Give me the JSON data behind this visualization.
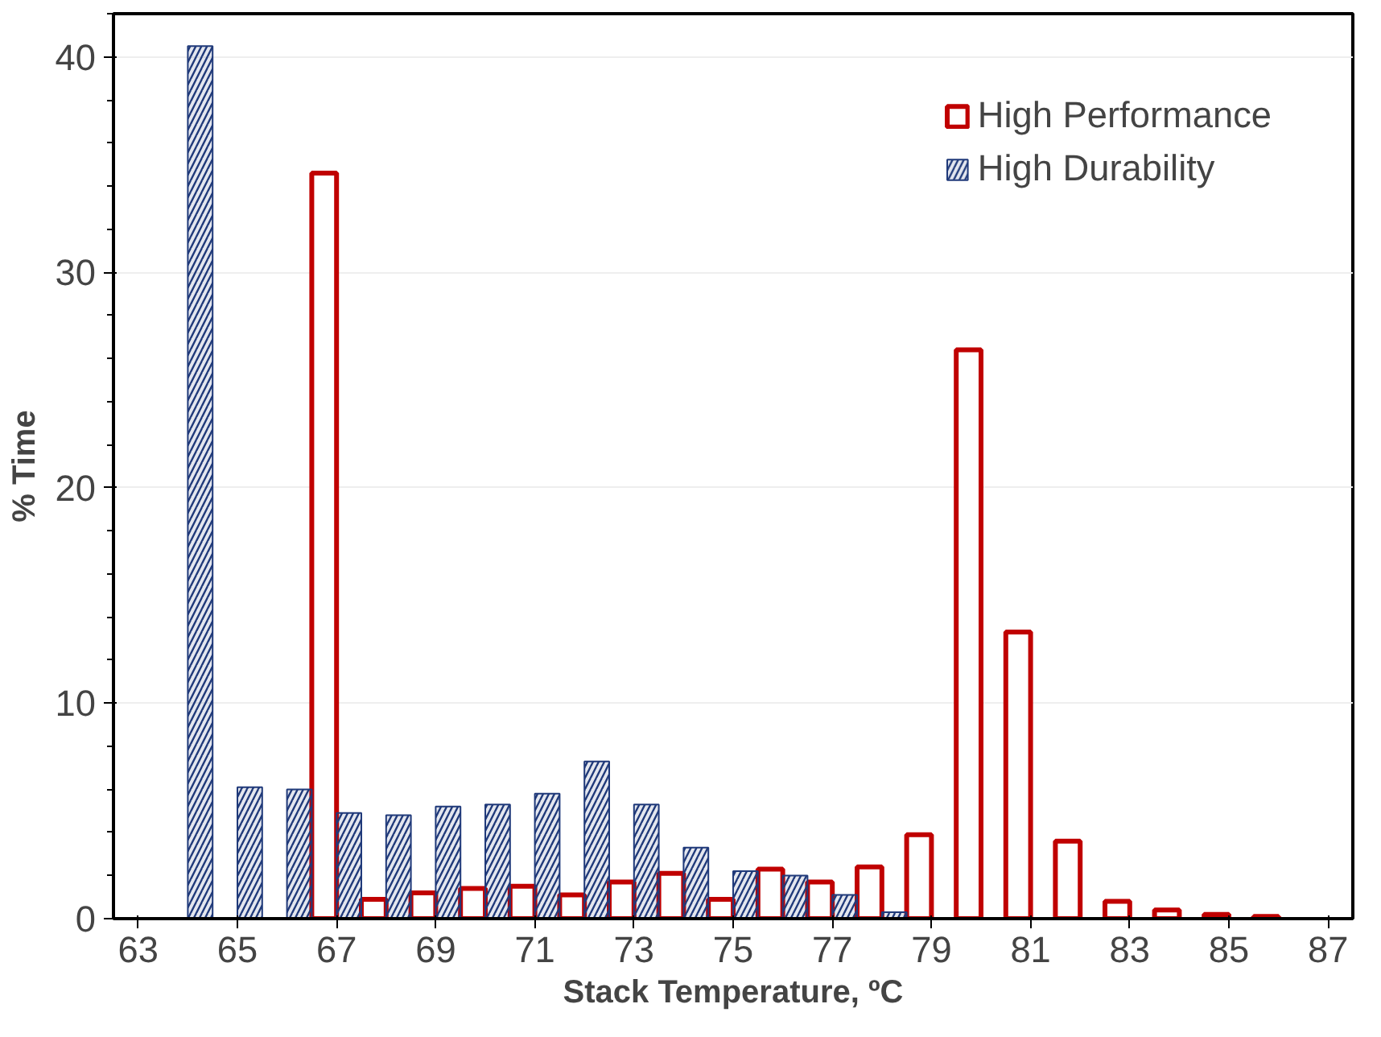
{
  "chart_data": {
    "type": "bar",
    "xlabel": "Stack Temperature, ºC",
    "ylabel": "% Time",
    "x": [
      64,
      65,
      66,
      67,
      68,
      69,
      70,
      71,
      72,
      73,
      74,
      75,
      76,
      77,
      78,
      79,
      80,
      81,
      82,
      83,
      84,
      85,
      86
    ],
    "series": [
      {
        "name": "High Performance",
        "color": "#c00000",
        "values": [
          null,
          null,
          null,
          34.6,
          0.9,
          1.2,
          1.4,
          1.5,
          1.1,
          1.7,
          2.1,
          0.9,
          2.3,
          1.7,
          2.4,
          3.9,
          26.4,
          13.3,
          3.6,
          0.8,
          0.4,
          0.2,
          0.1
        ]
      },
      {
        "name": "High Durability",
        "color": "#203a7a",
        "values": [
          40.5,
          6.1,
          6.0,
          4.9,
          4.8,
          5.2,
          5.3,
          5.8,
          7.3,
          5.3,
          3.3,
          2.2,
          2.0,
          1.1,
          0.3,
          null,
          null,
          null,
          null,
          null,
          null,
          null,
          null
        ]
      }
    ],
    "xlim": [
      62.5,
      87.5
    ],
    "xticks": [
      63,
      65,
      67,
      69,
      71,
      73,
      75,
      77,
      79,
      81,
      83,
      85,
      87
    ],
    "ylim": [
      0,
      42
    ],
    "yticks": [
      0,
      10,
      20,
      30,
      40
    ],
    "grid": "y",
    "legend": "top right"
  }
}
